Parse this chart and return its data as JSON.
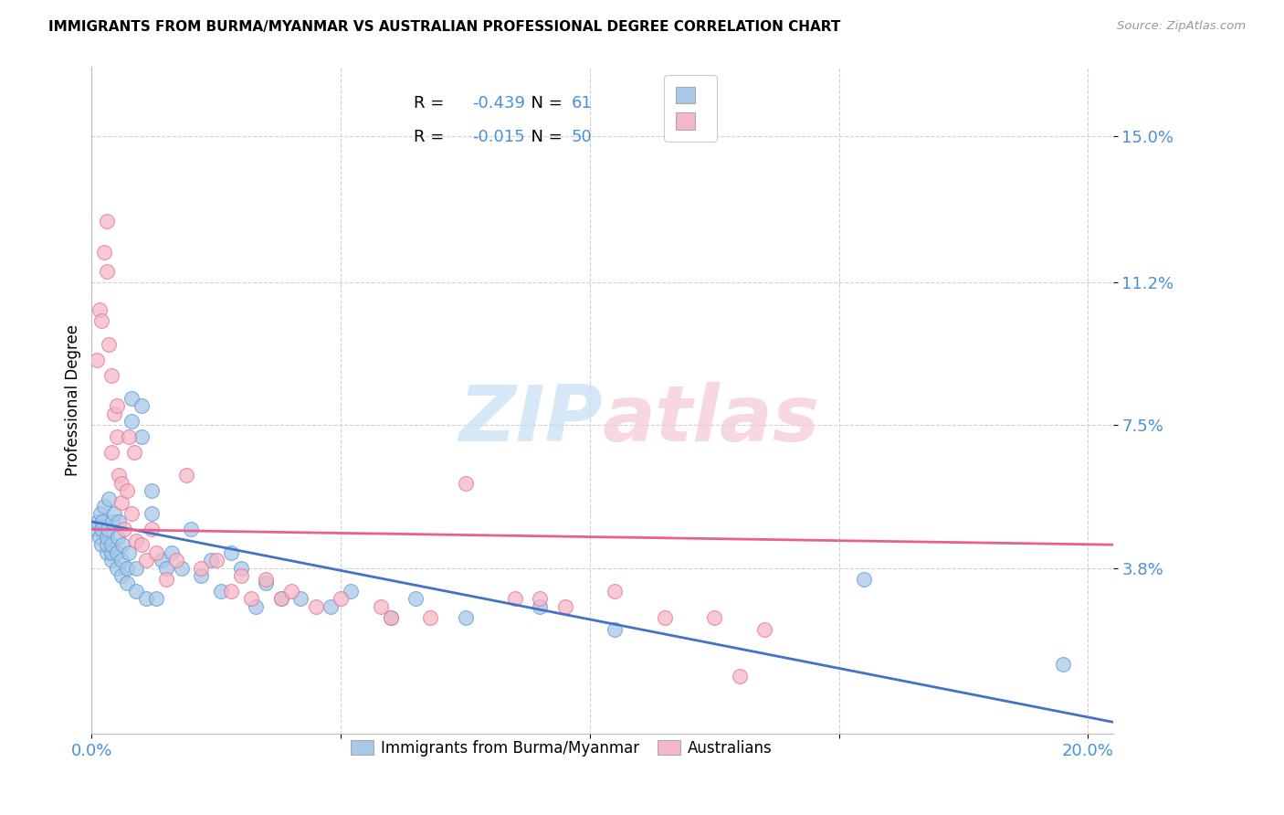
{
  "title": "IMMIGRANTS FROM BURMA/MYANMAR VS AUSTRALIAN PROFESSIONAL DEGREE CORRELATION CHART",
  "source": "Source: ZipAtlas.com",
  "ylabel": "Professional Degree",
  "xlim": [
    0.0,
    0.205
  ],
  "ylim": [
    -0.005,
    0.168
  ],
  "yticks": [
    0.038,
    0.075,
    0.112,
    0.15
  ],
  "ytick_labels": [
    "3.8%",
    "7.5%",
    "11.2%",
    "15.0%"
  ],
  "xticks": [
    0.0,
    0.05,
    0.1,
    0.15,
    0.2
  ],
  "xtick_labels": [
    "0.0%",
    "",
    "",
    "",
    "20.0%"
  ],
  "blue_color": "#a8c8e8",
  "pink_color": "#f4b8c8",
  "blue_edge_color": "#5b9bd5",
  "pink_edge_color": "#e87090",
  "blue_line_color": "#4472c4",
  "pink_line_color": "#e86090",
  "tick_color": "#4a90d9",
  "grid_color": "#d0d0d0",
  "blue_trend_start": 0.05,
  "blue_trend_end": -0.002,
  "pink_trend_start": 0.048,
  "pink_trend_end": 0.044,
  "blue_x": [
    0.0008,
    0.0012,
    0.0015,
    0.0018,
    0.002,
    0.002,
    0.0022,
    0.0025,
    0.003,
    0.003,
    0.003,
    0.0032,
    0.0035,
    0.004,
    0.004,
    0.004,
    0.0042,
    0.0045,
    0.005,
    0.005,
    0.0052,
    0.0055,
    0.006,
    0.006,
    0.0062,
    0.007,
    0.007,
    0.0075,
    0.008,
    0.008,
    0.009,
    0.009,
    0.01,
    0.01,
    0.011,
    0.012,
    0.012,
    0.013,
    0.014,
    0.015,
    0.016,
    0.018,
    0.02,
    0.022,
    0.024,
    0.026,
    0.028,
    0.03,
    0.033,
    0.035,
    0.038,
    0.042,
    0.048,
    0.052,
    0.06,
    0.065,
    0.075,
    0.09,
    0.105,
    0.155,
    0.195
  ],
  "blue_y": [
    0.048,
    0.05,
    0.046,
    0.052,
    0.044,
    0.048,
    0.05,
    0.054,
    0.042,
    0.044,
    0.046,
    0.048,
    0.056,
    0.04,
    0.042,
    0.044,
    0.05,
    0.052,
    0.038,
    0.042,
    0.046,
    0.05,
    0.036,
    0.04,
    0.044,
    0.034,
    0.038,
    0.042,
    0.076,
    0.082,
    0.032,
    0.038,
    0.072,
    0.08,
    0.03,
    0.052,
    0.058,
    0.03,
    0.04,
    0.038,
    0.042,
    0.038,
    0.048,
    0.036,
    0.04,
    0.032,
    0.042,
    0.038,
    0.028,
    0.034,
    0.03,
    0.03,
    0.028,
    0.032,
    0.025,
    0.03,
    0.025,
    0.028,
    0.022,
    0.035,
    0.013
  ],
  "pink_x": [
    0.001,
    0.0015,
    0.002,
    0.0025,
    0.003,
    0.003,
    0.0035,
    0.004,
    0.004,
    0.0045,
    0.005,
    0.005,
    0.0055,
    0.006,
    0.006,
    0.0065,
    0.007,
    0.0075,
    0.008,
    0.0085,
    0.009,
    0.01,
    0.011,
    0.012,
    0.013,
    0.015,
    0.017,
    0.019,
    0.022,
    0.025,
    0.028,
    0.03,
    0.032,
    0.035,
    0.038,
    0.04,
    0.045,
    0.05,
    0.058,
    0.068,
    0.075,
    0.085,
    0.095,
    0.105,
    0.115,
    0.125,
    0.135,
    0.09,
    0.06,
    0.13
  ],
  "pink_y": [
    0.092,
    0.105,
    0.102,
    0.12,
    0.128,
    0.115,
    0.096,
    0.088,
    0.068,
    0.078,
    0.072,
    0.08,
    0.062,
    0.055,
    0.06,
    0.048,
    0.058,
    0.072,
    0.052,
    0.068,
    0.045,
    0.044,
    0.04,
    0.048,
    0.042,
    0.035,
    0.04,
    0.062,
    0.038,
    0.04,
    0.032,
    0.036,
    0.03,
    0.035,
    0.03,
    0.032,
    0.028,
    0.03,
    0.028,
    0.025,
    0.06,
    0.03,
    0.028,
    0.032,
    0.025,
    0.025,
    0.022,
    0.03,
    0.025,
    0.01
  ]
}
